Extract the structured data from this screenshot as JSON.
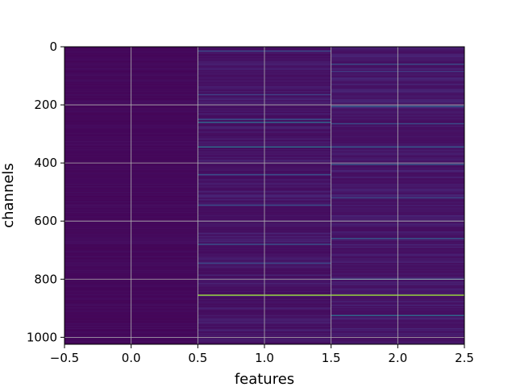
{
  "chart_data": {
    "type": "heatmap",
    "title": "",
    "xlabel": "features",
    "ylabel": "channels",
    "xlim": [
      -0.5,
      2.5
    ],
    "ylim": [
      1024,
      0
    ],
    "grid": true,
    "colormap": "viridis",
    "x_ticks": [
      -0.5,
      0.0,
      0.5,
      1.0,
      1.5,
      2.0,
      2.5
    ],
    "x_tick_labels": [
      "−0.5",
      "0.0",
      "0.5",
      "1.0",
      "1.5",
      "2.0",
      "2.5"
    ],
    "y_ticks": [
      0,
      200,
      400,
      600,
      800,
      1000
    ],
    "y_tick_labels": [
      "0",
      "200",
      "400",
      "600",
      "800",
      "1000"
    ],
    "n_channels": 1024,
    "features": [
      0,
      1,
      2
    ],
    "column_base_levels": [
      0.02,
      0.04,
      0.05
    ],
    "highlight_rows": [
      {
        "channel": 15,
        "feature": 1,
        "value": 0.28
      },
      {
        "channel": 60,
        "feature": 2,
        "value": 0.3
      },
      {
        "channel": 85,
        "feature": 2,
        "value": 0.22
      },
      {
        "channel": 165,
        "feature": 1,
        "value": 0.25
      },
      {
        "channel": 205,
        "feature": 2,
        "value": 0.38
      },
      {
        "channel": 250,
        "feature": 1,
        "value": 0.33
      },
      {
        "channel": 260,
        "feature": 1,
        "value": 0.4
      },
      {
        "channel": 265,
        "feature": 2,
        "value": 0.3
      },
      {
        "channel": 345,
        "feature": 1,
        "value": 0.42
      },
      {
        "channel": 345,
        "feature": 2,
        "value": 0.35
      },
      {
        "channel": 405,
        "feature": 2,
        "value": 0.35
      },
      {
        "channel": 440,
        "feature": 1,
        "value": 0.3
      },
      {
        "channel": 520,
        "feature": 2,
        "value": 0.28
      },
      {
        "channel": 545,
        "feature": 1,
        "value": 0.3
      },
      {
        "channel": 660,
        "feature": 2,
        "value": 0.35
      },
      {
        "channel": 680,
        "feature": 1,
        "value": 0.32
      },
      {
        "channel": 745,
        "feature": 1,
        "value": 0.28
      },
      {
        "channel": 800,
        "feature": 2,
        "value": 0.36
      },
      {
        "channel": 855,
        "feature": 1,
        "value": 0.85
      },
      {
        "channel": 855,
        "feature": 2,
        "value": 0.85
      },
      {
        "channel": 925,
        "feature": 2,
        "value": 0.4
      }
    ]
  }
}
